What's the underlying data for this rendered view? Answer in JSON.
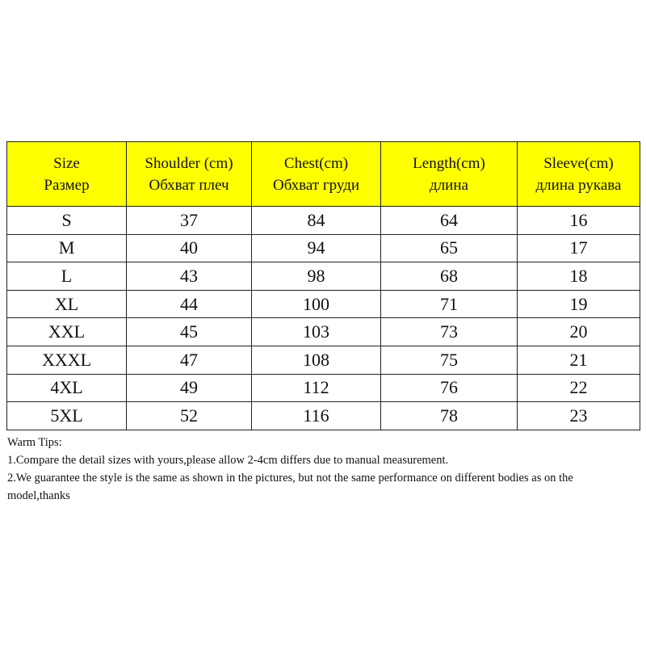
{
  "table": {
    "headers": [
      {
        "en": "Size",
        "ru": "Размер"
      },
      {
        "en": "Shoulder (cm)",
        "ru": "Обхват плеч"
      },
      {
        "en": "Chest(cm)",
        "ru": "Обхват груди"
      },
      {
        "en": "Length(cm)",
        "ru": "длина"
      },
      {
        "en": "Sleeve(cm)",
        "ru": "длина рукава"
      }
    ],
    "header_color": "#ffff00",
    "rows": [
      [
        "S",
        "37",
        "84",
        "64",
        "16"
      ],
      [
        "M",
        "40",
        "94",
        "65",
        "17"
      ],
      [
        "L",
        "43",
        "98",
        "68",
        "18"
      ],
      [
        "XL",
        "44",
        "100",
        "71",
        "19"
      ],
      [
        "XXL",
        "45",
        "103",
        "73",
        "20"
      ],
      [
        "XXXL",
        "47",
        "108",
        "75",
        "21"
      ],
      [
        "4XL",
        "49",
        "112",
        "76",
        "22"
      ],
      [
        "5XL",
        "52",
        "116",
        "78",
        "23"
      ]
    ]
  },
  "tips": {
    "title": "Warm Tips:",
    "items": [
      "1.Compare the detail sizes with yours,please allow 2-4cm differs due to manual measurement.",
      "2.We guarantee the style is the same as shown in the pictures, but not the same performance on different bodies as on the model,thanks"
    ]
  }
}
